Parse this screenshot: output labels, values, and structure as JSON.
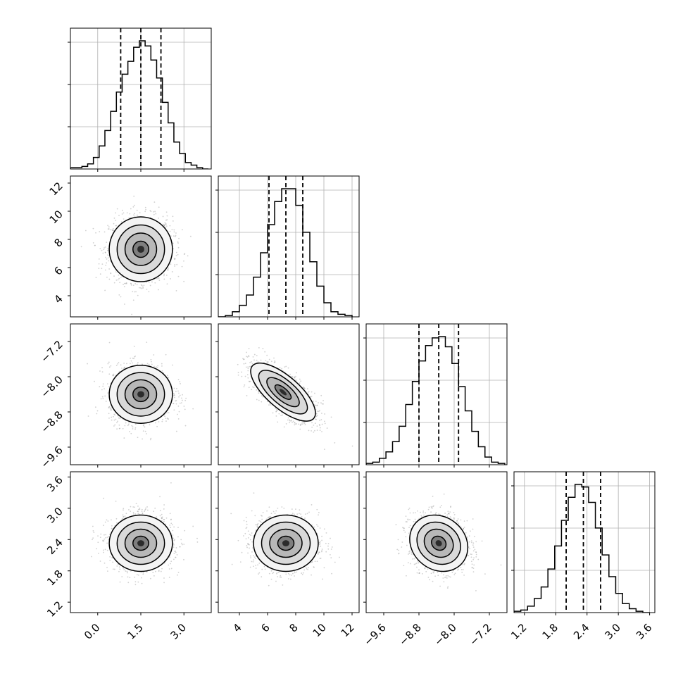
{
  "chart_data": {
    "type": "corner",
    "title": "",
    "parameters": [
      {
        "label": "",
        "range": [
          -0.95,
          3.95
        ],
        "ticks": [
          "0.0",
          "1.5",
          "3.0"
        ],
        "tick_values": [
          0.0,
          1.5,
          3.0
        ],
        "quantiles": [
          0.8,
          1.5,
          2.2
        ],
        "histogram": {
          "edges": [
            -0.95,
            -0.75,
            -0.55,
            -0.35,
            -0.15,
            0.05,
            0.25,
            0.45,
            0.65,
            0.85,
            1.05,
            1.25,
            1.45,
            1.65,
            1.85,
            2.05,
            2.25,
            2.45,
            2.65,
            2.85,
            3.05,
            3.25,
            3.45,
            3.65,
            3.85
          ],
          "counts": [
            1,
            1,
            2,
            4,
            9,
            18,
            30,
            45,
            60,
            74,
            84,
            95,
            100,
            96,
            85,
            71,
            52,
            36,
            21,
            12,
            5,
            3,
            1,
            0
          ]
        }
      },
      {
        "label": "",
        "range": [
          2.5,
          12.5
        ],
        "ticks": [
          "4",
          "6",
          "8",
          "10",
          "12"
        ],
        "tick_values": [
          4,
          6,
          8,
          10,
          12
        ],
        "quantiles": [
          6.1,
          7.3,
          8.5
        ],
        "histogram": {
          "edges": [
            2.5,
            3.0,
            3.5,
            4.0,
            4.5,
            5.0,
            5.5,
            6.0,
            6.5,
            7.0,
            7.5,
            8.0,
            8.5,
            9.0,
            9.5,
            10.0,
            10.5,
            11.0,
            11.5,
            12.0
          ],
          "counts": [
            0,
            1,
            4,
            9,
            17,
            31,
            50,
            72,
            90,
            100,
            100,
            87,
            66,
            43,
            24,
            11,
            4,
            2,
            1
          ]
        }
      },
      {
        "label": "",
        "range": [
          -10.0,
          -6.8
        ],
        "ticks": [
          "−9.6",
          "−8.8",
          "−8.0",
          "−7.2"
        ],
        "tick_values": [
          -9.6,
          -8.8,
          -8.0,
          -7.2
        ],
        "quantiles": [
          -8.8,
          -8.35,
          -7.9
        ],
        "histogram": {
          "edges": [
            -10.0,
            -9.85,
            -9.7,
            -9.55,
            -9.4,
            -9.25,
            -9.1,
            -8.95,
            -8.8,
            -8.65,
            -8.5,
            -8.35,
            -8.2,
            -8.05,
            -7.9,
            -7.75,
            -7.6,
            -7.45,
            -7.3,
            -7.15,
            -7.0,
            -6.85
          ],
          "counts": [
            1,
            2,
            5,
            10,
            18,
            30,
            47,
            65,
            81,
            93,
            99,
            100,
            92,
            79,
            61,
            42,
            26,
            14,
            6,
            2,
            1
          ]
        }
      },
      {
        "label": "",
        "range": [
          1.0,
          3.7
        ],
        "ticks": [
          "1.2",
          "1.8",
          "2.4",
          "3.0",
          "3.6"
        ],
        "tick_values": [
          1.2,
          1.8,
          2.4,
          3.0,
          3.6
        ],
        "quantiles": [
          2.0,
          2.33,
          2.66
        ],
        "histogram": {
          "edges": [
            1.0,
            1.13,
            1.26,
            1.39,
            1.52,
            1.65,
            1.78,
            1.91,
            2.04,
            2.17,
            2.3,
            2.43,
            2.56,
            2.69,
            2.82,
            2.95,
            3.08,
            3.21,
            3.34,
            3.47,
            3.6
          ],
          "counts": [
            1,
            2,
            5,
            11,
            20,
            34,
            52,
            72,
            90,
            100,
            98,
            86,
            66,
            45,
            28,
            15,
            7,
            3,
            1,
            0
          ]
        }
      }
    ],
    "pairs": [
      {
        "x": 0,
        "y": 1,
        "center": [
          1.5,
          7.3
        ],
        "sd": [
          0.55,
          1.15
        ],
        "corr": 0.0
      },
      {
        "x": 0,
        "y": 2,
        "center": [
          1.5,
          -8.4
        ],
        "sd": [
          0.55,
          0.33
        ],
        "corr": 0.0
      },
      {
        "x": 1,
        "y": 2,
        "center": [
          7.1,
          -8.35
        ],
        "sd": [
          1.15,
          0.33
        ],
        "corr": -0.72
      },
      {
        "x": 0,
        "y": 3,
        "center": [
          1.5,
          2.33
        ],
        "sd": [
          0.55,
          0.27
        ],
        "corr": 0.0
      },
      {
        "x": 1,
        "y": 3,
        "center": [
          7.3,
          2.33
        ],
        "sd": [
          1.15,
          0.27
        ],
        "corr": 0.0
      },
      {
        "x": 2,
        "y": 3,
        "center": [
          -8.35,
          2.33
        ],
        "sd": [
          0.33,
          0.27
        ],
        "corr": -0.15
      }
    ],
    "contour_levels_sigma": [
      0.5,
      1.0,
      1.5,
      2.0
    ],
    "grid": true
  }
}
